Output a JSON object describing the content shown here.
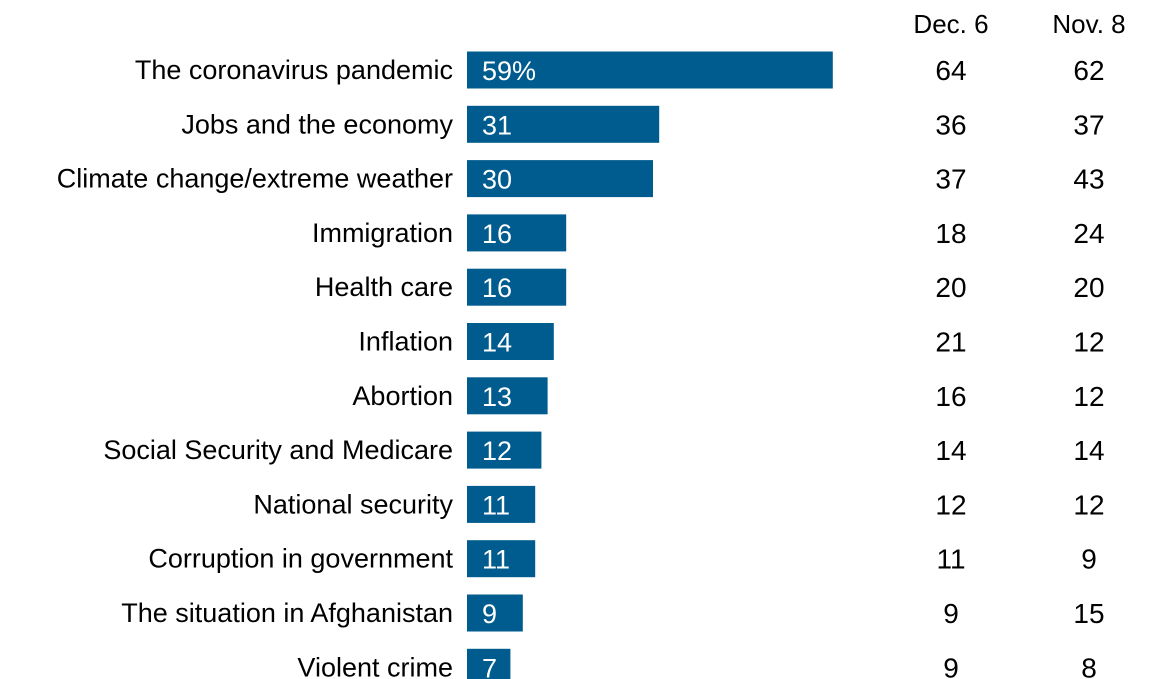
{
  "chart_data": {
    "type": "bar",
    "orientation": "horizontal",
    "categories": [
      "The coronavirus pandemic",
      "Jobs and the economy",
      "Climate change/extreme weather",
      "Immigration",
      "Health care",
      "Inflation",
      "Abortion",
      "Social Security and Medicare",
      "National security",
      "Corruption in government",
      "The situation in Afghanistan",
      "Violent crime"
    ],
    "values": [
      59,
      31,
      30,
      16,
      16,
      14,
      13,
      12,
      11,
      11,
      9,
      7
    ],
    "value_labels": [
      "59%",
      "31",
      "30",
      "16",
      "16",
      "14",
      "13",
      "12",
      "11",
      "11",
      "9",
      "7"
    ],
    "bar_color": "#005b8e",
    "xlim": [
      0,
      100
    ],
    "grid": false,
    "legend": "none",
    "comparison_columns": [
      {
        "header": "Dec. 6",
        "values": [
          "64",
          "36",
          "37",
          "18",
          "20",
          "21",
          "16",
          "14",
          "12",
          "11",
          "9",
          "9"
        ]
      },
      {
        "header": "Nov. 8",
        "values": [
          "62",
          "37",
          "43",
          "24",
          "20",
          "12",
          "12",
          "14",
          "12",
          "9",
          "15",
          "8"
        ]
      }
    ]
  }
}
